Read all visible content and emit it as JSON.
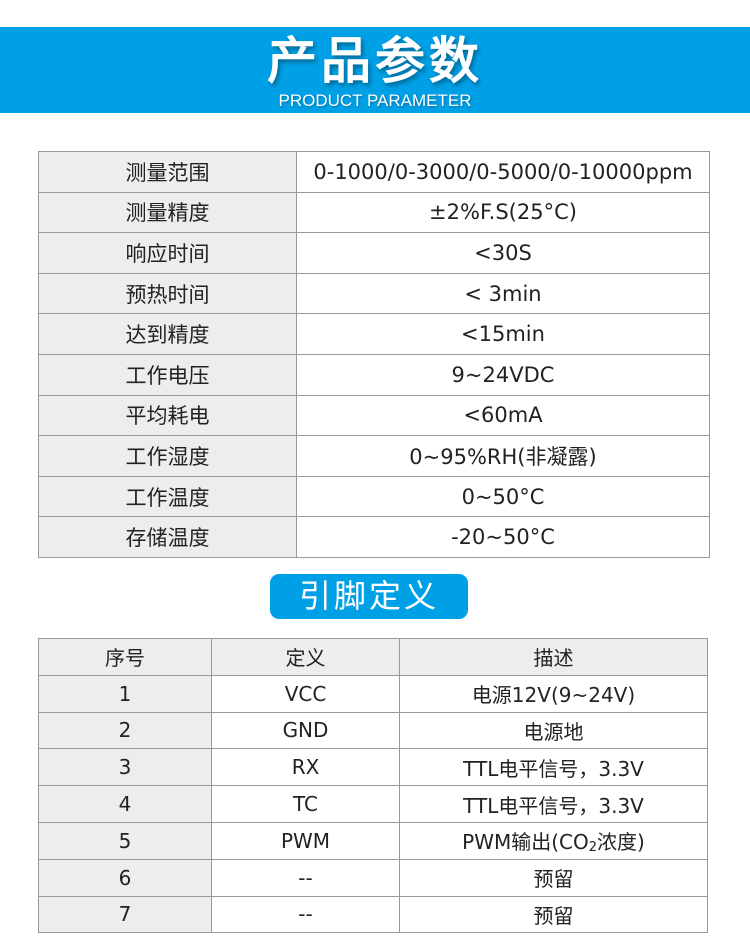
{
  "banner": {
    "title": "产品参数",
    "subtitle": "PRODUCT PARAMETER",
    "color": "#00a0e6"
  },
  "params": [
    {
      "label": "测量范围",
      "value": "0-1000/0-3000/0-5000/0-10000ppm"
    },
    {
      "label": "测量精度",
      "value": "±2%F.S(25°C)"
    },
    {
      "label": "响应时间",
      "value": "<30S"
    },
    {
      "label": "预热时间",
      "value": "< 3min"
    },
    {
      "label": "达到精度",
      "value": "<15min"
    },
    {
      "label": "工作电压",
      "value": "9~24VDC"
    },
    {
      "label": "平均耗电",
      "value": "<60mA"
    },
    {
      "label": "工作湿度",
      "value": "0~95%RH(非凝露)"
    },
    {
      "label": "工作温度",
      "value": "0~50°C"
    },
    {
      "label": "存储温度",
      "value": "-20~50°C"
    }
  ],
  "pins": {
    "heading": "引脚定义",
    "headers": [
      "序号",
      "定义",
      "描述"
    ],
    "rows": [
      {
        "no": "1",
        "def": "VCC",
        "desc": "电源12V(9~24V)"
      },
      {
        "no": "2",
        "def": "GND",
        "desc": "电源地"
      },
      {
        "no": "3",
        "def": "RX",
        "desc": "TTL电平信号，3.3V"
      },
      {
        "no": "4",
        "def": "TC",
        "desc": "TTL电平信号，3.3V"
      },
      {
        "no": "5",
        "def": "PWM",
        "desc_a": "PWM输出(CO",
        "desc_sub": "2",
        "desc_b": "浓度)"
      },
      {
        "no": "6",
        "def": "--",
        "desc": "预留"
      },
      {
        "no": "7",
        "def": "--",
        "desc": "预留"
      }
    ]
  }
}
